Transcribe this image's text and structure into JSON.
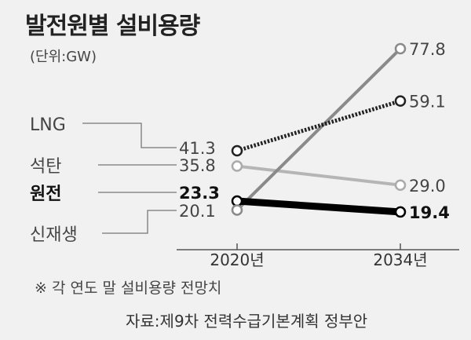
{
  "chart_data": {
    "type": "line",
    "title": "발전원별 설비용량",
    "unit": "(단위:GW)",
    "categories": [
      "2020년",
      "2034년"
    ],
    "series": [
      {
        "name": "LNG",
        "values": [
          41.3,
          59.1
        ],
        "color": "#222222",
        "style": "dotted"
      },
      {
        "name": "석탄",
        "values": [
          35.8,
          29.0
        ],
        "color": "#b5b5b5",
        "style": "solid"
      },
      {
        "name": "원전",
        "values": [
          23.3,
          19.4
        ],
        "color": "#000000",
        "style": "bold"
      },
      {
        "name": "신재생",
        "values": [
          20.1,
          77.8
        ],
        "color": "#8a8a8a",
        "style": "solid"
      }
    ],
    "value_labels": [
      [
        "41.3",
        "59.1"
      ],
      [
        "35.8",
        "29.0"
      ],
      [
        "23.3",
        "19.4"
      ],
      [
        "20.1",
        "77.8"
      ]
    ],
    "note": "※ 각 연도 말 설비용량 전망치",
    "source": "자료:제9차 전력수급기본계획 정부안"
  }
}
